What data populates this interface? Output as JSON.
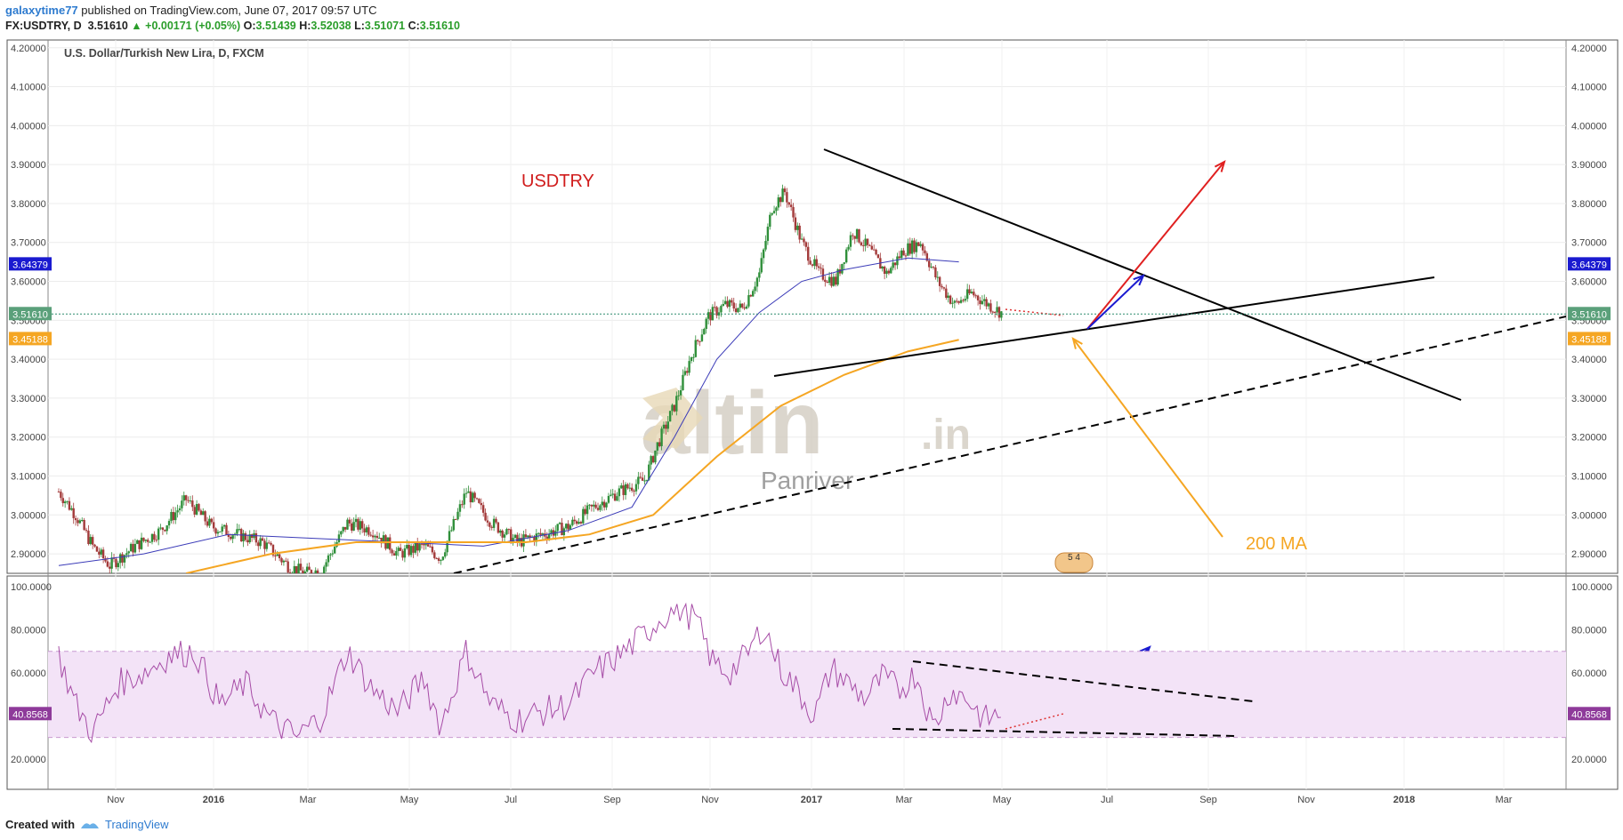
{
  "header": {
    "author": "galaxytime77",
    "published_text": "published on TradingView.com, June 07, 2017 09:57 UTC",
    "symbol": "FX:USDTRY, D",
    "last": "3.51610",
    "change": "+0.00171 (+0.05%)",
    "o_label": "O:",
    "o_value": "3.51439",
    "h_label": "H:",
    "h_value": "3.52038",
    "l_label": "L:",
    "l_value": "3.51071",
    "c_label": "C:",
    "c_value": "3.51610"
  },
  "footer": {
    "created_with": "Created with",
    "brand": "TradingView"
  },
  "colors": {
    "candle_up": "#2f8f3a",
    "candle_down": "#a33a3a",
    "ma_blue": "#3b3bb8",
    "ma_orange": "#f5a623",
    "rsi": "#a64ca6",
    "rsi_band": "#f3e3f7"
  },
  "chart_data": {
    "type": "candlestick",
    "title": "U.S. Dollar/Turkish New Lira, D, FXCM",
    "price_axis": {
      "min": 2.85,
      "max": 4.22,
      "ticks": [
        "2.90000",
        "3.00000",
        "3.10000",
        "3.20000",
        "3.30000",
        "3.40000",
        "3.50000",
        "3.60000",
        "3.70000",
        "3.80000",
        "3.90000",
        "4.00000",
        "4.10000",
        "4.20000"
      ]
    },
    "x_labels": [
      "Nov",
      "2016",
      "Mar",
      "May",
      "Jul",
      "Sep",
      "Nov",
      "2017",
      "Mar",
      "May",
      "Jul",
      "Sep",
      "Nov",
      "2018",
      "Mar"
    ],
    "price_series": [
      {
        "t": 0,
        "v": 3.06
      },
      {
        "t": 4,
        "v": 3.0
      },
      {
        "t": 8,
        "v": 2.92
      },
      {
        "t": 12,
        "v": 2.87
      },
      {
        "t": 18,
        "v": 2.92
      },
      {
        "t": 24,
        "v": 2.96
      },
      {
        "t": 30,
        "v": 3.04
      },
      {
        "t": 36,
        "v": 2.97
      },
      {
        "t": 42,
        "v": 2.95
      },
      {
        "t": 48,
        "v": 2.93
      },
      {
        "t": 54,
        "v": 2.87
      },
      {
        "t": 58,
        "v": 2.85
      },
      {
        "t": 62,
        "v": 2.86
      },
      {
        "t": 68,
        "v": 2.98
      },
      {
        "t": 74,
        "v": 2.96
      },
      {
        "t": 80,
        "v": 2.9
      },
      {
        "t": 86,
        "v": 2.92
      },
      {
        "t": 90,
        "v": 2.89
      },
      {
        "t": 96,
        "v": 3.06
      },
      {
        "t": 102,
        "v": 2.98
      },
      {
        "t": 108,
        "v": 2.93
      },
      {
        "t": 114,
        "v": 2.95
      },
      {
        "t": 120,
        "v": 2.97
      },
      {
        "t": 126,
        "v": 3.02
      },
      {
        "t": 132,
        "v": 3.06
      },
      {
        "t": 138,
        "v": 3.09
      },
      {
        "t": 141,
        "v": 3.18
      },
      {
        "t": 145,
        "v": 3.28
      },
      {
        "t": 149,
        "v": 3.41
      },
      {
        "t": 153,
        "v": 3.51
      },
      {
        "t": 157,
        "v": 3.54
      },
      {
        "t": 161,
        "v": 3.53
      },
      {
        "t": 165,
        "v": 3.62
      },
      {
        "t": 168,
        "v": 3.79
      },
      {
        "t": 171,
        "v": 3.83
      },
      {
        "t": 175,
        "v": 3.7
      },
      {
        "t": 179,
        "v": 3.62
      },
      {
        "t": 183,
        "v": 3.6
      },
      {
        "t": 187,
        "v": 3.73
      },
      {
        "t": 191,
        "v": 3.68
      },
      {
        "t": 195,
        "v": 3.62
      },
      {
        "t": 199,
        "v": 3.68
      },
      {
        "t": 203,
        "v": 3.7
      },
      {
        "t": 207,
        "v": 3.6
      },
      {
        "t": 211,
        "v": 3.54
      },
      {
        "t": 215,
        "v": 3.57
      },
      {
        "t": 219,
        "v": 3.54
      },
      {
        "t": 222,
        "v": 3.52
      }
    ],
    "ma50_label": "",
    "ma200_label": "",
    "ma_blue_value": "3.64379",
    "ma_orange_value": "3.45188",
    "current_price": "3.51610",
    "rsi": {
      "ticks": [
        "20.0000",
        "40.0000",
        "60.0000",
        "80.0000",
        "100.0000"
      ],
      "overbought": 70,
      "oversold": 30,
      "current": "40.8568",
      "series": [
        {
          "t": 0,
          "v": 68
        },
        {
          "t": 4,
          "v": 45
        },
        {
          "t": 8,
          "v": 32
        },
        {
          "t": 14,
          "v": 55
        },
        {
          "t": 20,
          "v": 60
        },
        {
          "t": 26,
          "v": 68
        },
        {
          "t": 32,
          "v": 70
        },
        {
          "t": 38,
          "v": 45
        },
        {
          "t": 44,
          "v": 55
        },
        {
          "t": 50,
          "v": 38
        },
        {
          "t": 56,
          "v": 30
        },
        {
          "t": 62,
          "v": 40
        },
        {
          "t": 68,
          "v": 70
        },
        {
          "t": 74,
          "v": 52
        },
        {
          "t": 80,
          "v": 42
        },
        {
          "t": 86,
          "v": 58
        },
        {
          "t": 90,
          "v": 35
        },
        {
          "t": 96,
          "v": 70
        },
        {
          "t": 102,
          "v": 45
        },
        {
          "t": 108,
          "v": 38
        },
        {
          "t": 114,
          "v": 42
        },
        {
          "t": 120,
          "v": 45
        },
        {
          "t": 126,
          "v": 60
        },
        {
          "t": 132,
          "v": 68
        },
        {
          "t": 138,
          "v": 78
        },
        {
          "t": 142,
          "v": 86
        },
        {
          "t": 146,
          "v": 90
        },
        {
          "t": 150,
          "v": 85
        },
        {
          "t": 154,
          "v": 65
        },
        {
          "t": 158,
          "v": 60
        },
        {
          "t": 162,
          "v": 68
        },
        {
          "t": 166,
          "v": 82
        },
        {
          "t": 170,
          "v": 62
        },
        {
          "t": 174,
          "v": 52
        },
        {
          "t": 178,
          "v": 40
        },
        {
          "t": 182,
          "v": 62
        },
        {
          "t": 186,
          "v": 55
        },
        {
          "t": 190,
          "v": 48
        },
        {
          "t": 194,
          "v": 58
        },
        {
          "t": 198,
          "v": 52
        },
        {
          "t": 202,
          "v": 60
        },
        {
          "t": 206,
          "v": 34
        },
        {
          "t": 210,
          "v": 52
        },
        {
          "t": 214,
          "v": 48
        },
        {
          "t": 218,
          "v": 38
        },
        {
          "t": 222,
          "v": 41
        }
      ]
    },
    "annotations": {
      "symbol_text": "USDTRY",
      "ma_text": "200 MA",
      "watermark_main": "altin",
      "watermark_domain": ".in",
      "watermark_sub": "Panriver",
      "event_badge": "5 4"
    }
  }
}
